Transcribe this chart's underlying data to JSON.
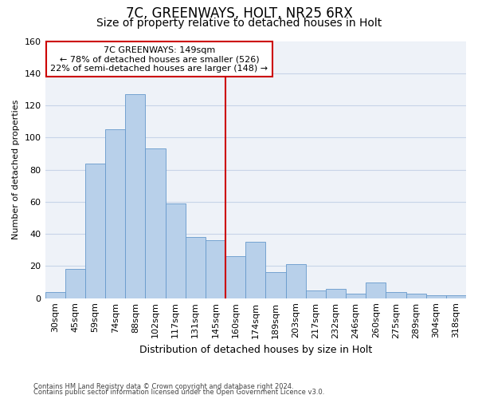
{
  "title": "7C, GREENWAYS, HOLT, NR25 6RX",
  "subtitle": "Size of property relative to detached houses in Holt",
  "xlabel": "Distribution of detached houses by size in Holt",
  "ylabel": "Number of detached properties",
  "footnote1": "Contains HM Land Registry data © Crown copyright and database right 2024.",
  "footnote2": "Contains public sector information licensed under the Open Government Licence v3.0.",
  "categories": [
    "30sqm",
    "45sqm",
    "59sqm",
    "74sqm",
    "88sqm",
    "102sqm",
    "117sqm",
    "131sqm",
    "145sqm",
    "160sqm",
    "174sqm",
    "189sqm",
    "203sqm",
    "217sqm",
    "232sqm",
    "246sqm",
    "260sqm",
    "275sqm",
    "289sqm",
    "304sqm",
    "318sqm"
  ],
  "values": [
    4,
    18,
    84,
    105,
    127,
    93,
    59,
    38,
    36,
    26,
    35,
    16,
    21,
    5,
    6,
    3,
    10,
    4,
    3,
    2,
    2
  ],
  "bar_color": "#b8d0ea",
  "bar_edge_color": "#6699cc",
  "vline_color": "#cc0000",
  "annotation_text": "7C GREENWAYS: 149sqm\n← 78% of detached houses are smaller (526)\n22% of semi-detached houses are larger (148) →",
  "annotation_box_color": "#cc0000",
  "ylim": [
    0,
    160
  ],
  "yticks": [
    0,
    20,
    40,
    60,
    80,
    100,
    120,
    140,
    160
  ],
  "grid_color": "#c8d4e8",
  "bg_color": "#eef2f8",
  "title_fontsize": 12,
  "subtitle_fontsize": 10,
  "xlabel_fontsize": 9,
  "ylabel_fontsize": 8,
  "tick_fontsize": 8,
  "annotation_fontsize": 8
}
